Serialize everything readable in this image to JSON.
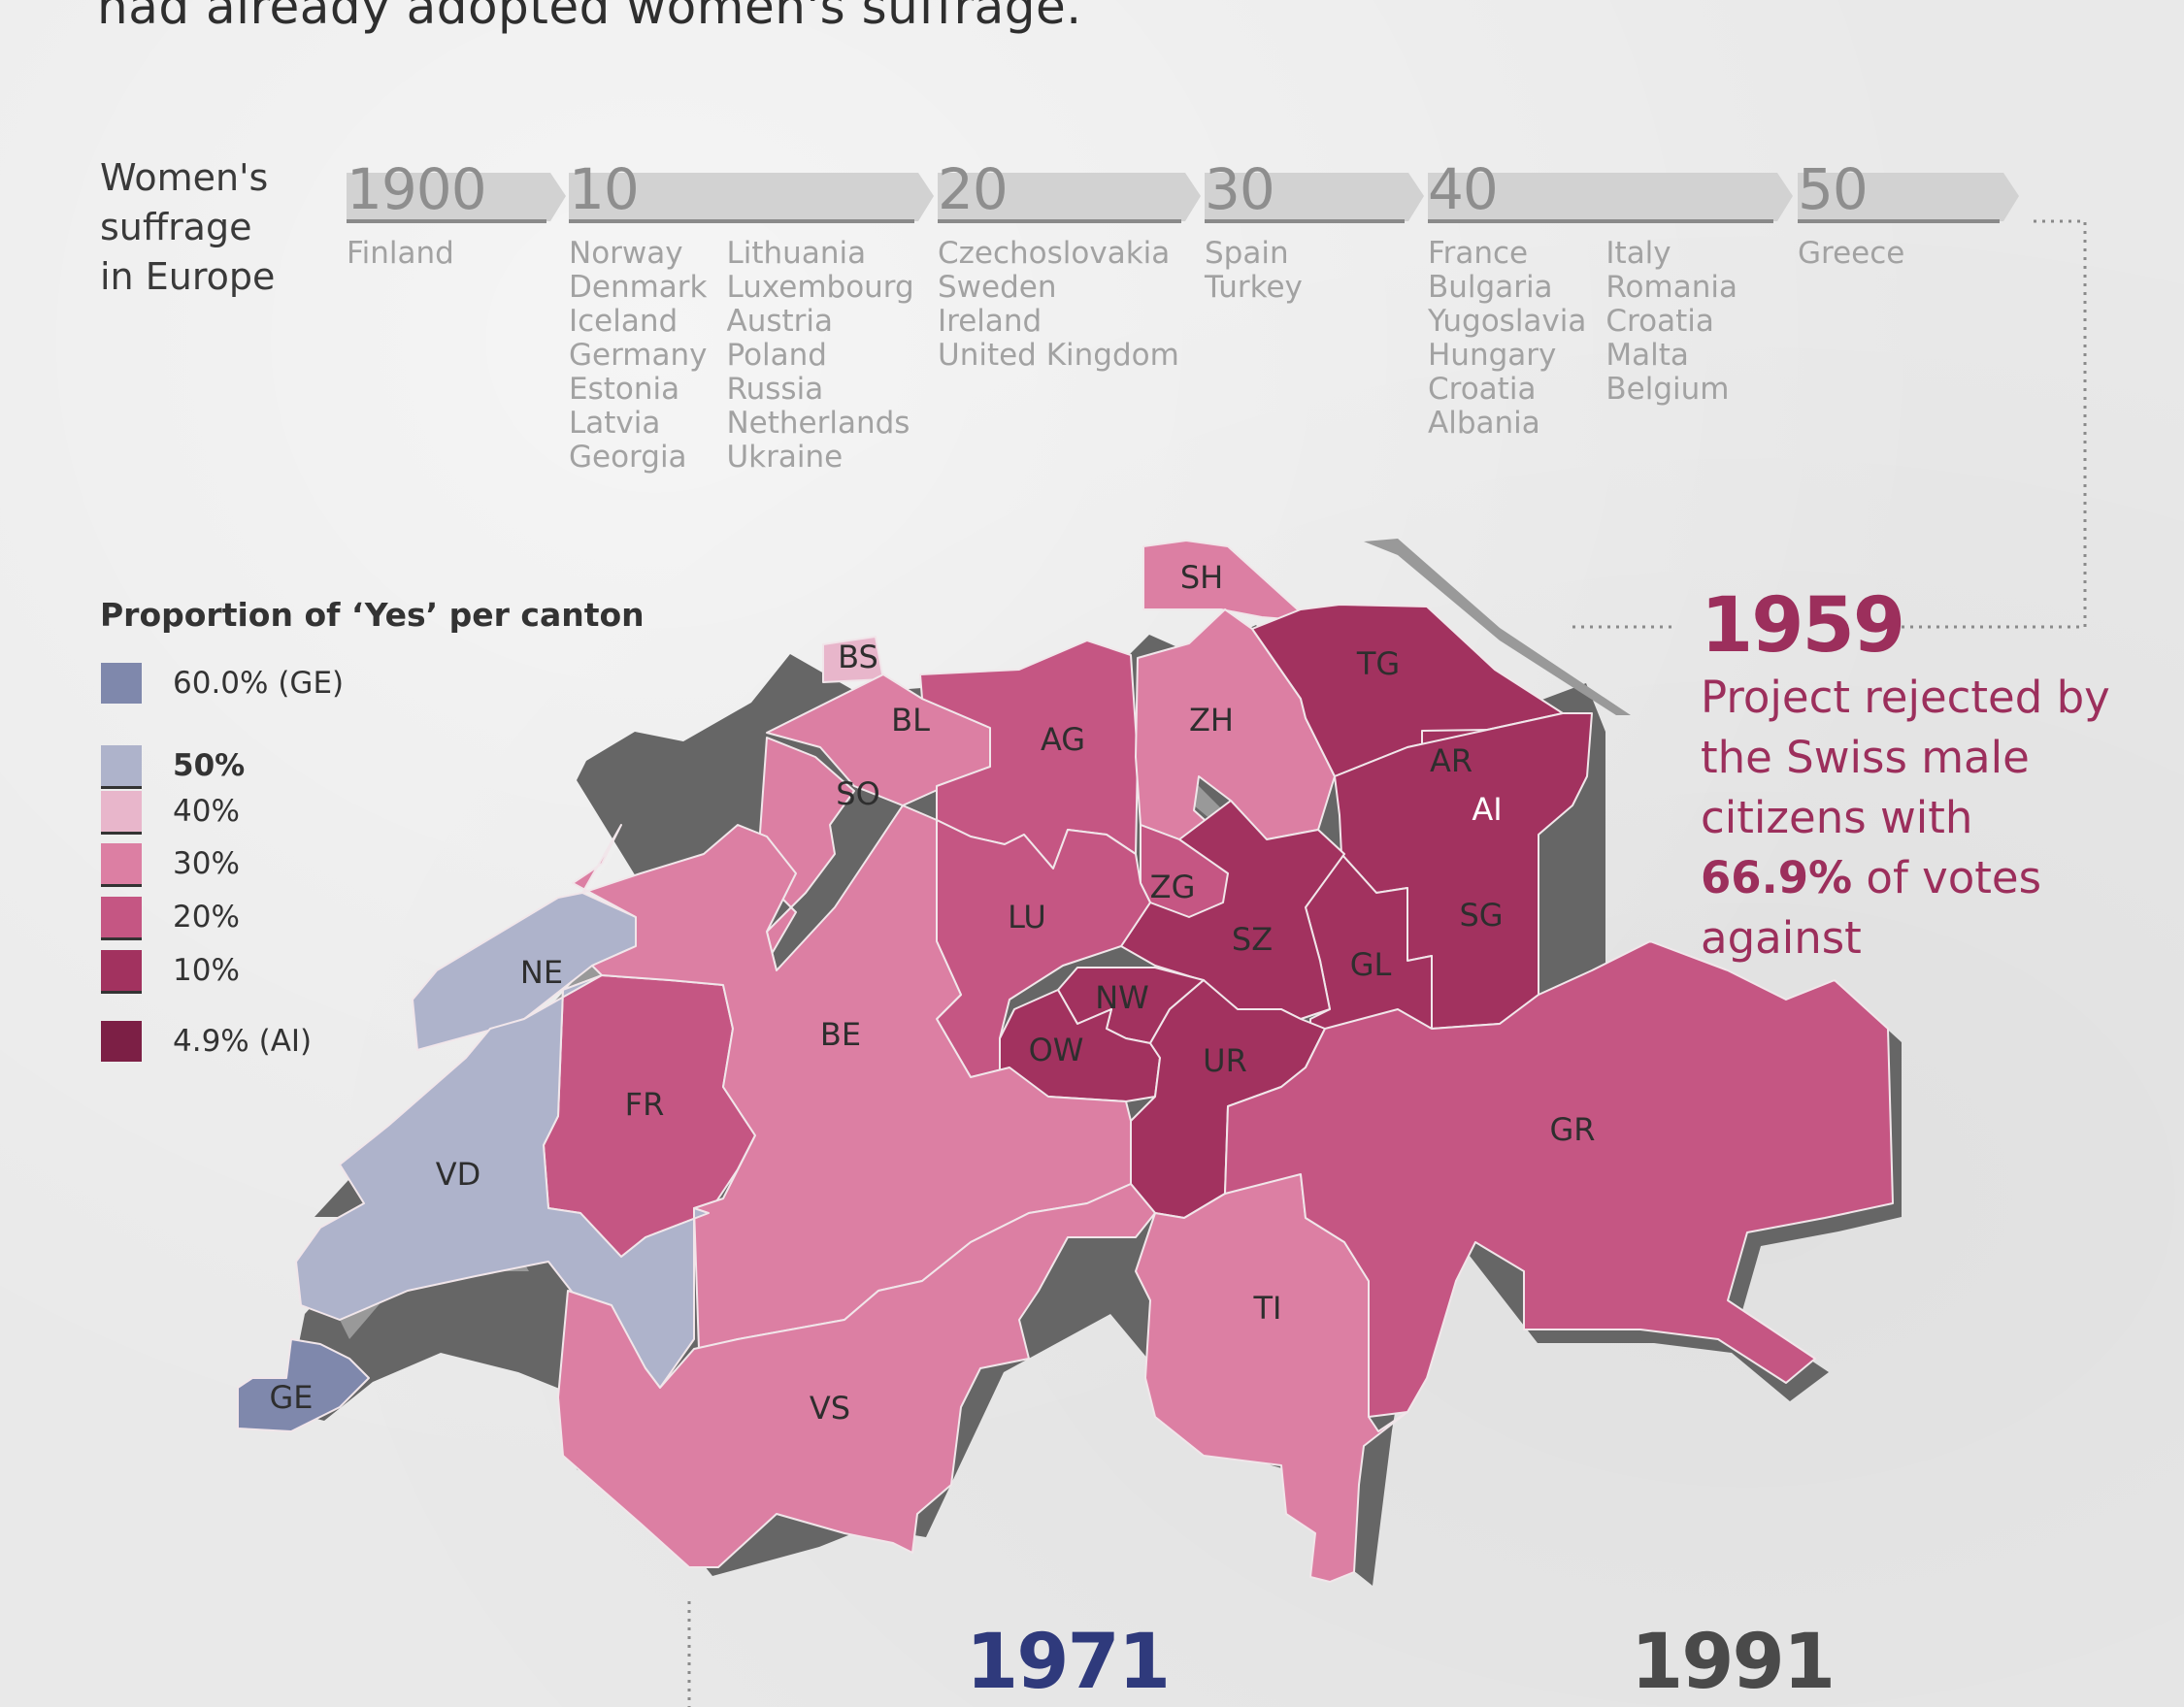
{
  "headline": "had already adopted women's suffrage.",
  "timeline": {
    "title_lines": [
      "Women's",
      "suffrage",
      "in Europe"
    ],
    "periods": [
      {
        "year": "1900",
        "columns": [
          [
            "Finland"
          ]
        ]
      },
      {
        "year": "10",
        "columns": [
          [
            "Norway",
            "Denmark",
            "Iceland",
            "Germany",
            "Estonia",
            "Latvia",
            "Georgia"
          ],
          [
            "Lithuania",
            "Luxembourg",
            "Austria",
            "Poland",
            "Russia",
            "Netherlands",
            "Ukraine"
          ]
        ]
      },
      {
        "year": "20",
        "columns": [
          [
            "Czechoslovakia",
            "Sweden",
            "Ireland",
            "United Kingdom"
          ]
        ]
      },
      {
        "year": "30",
        "columns": [
          [
            "Spain",
            "Turkey"
          ]
        ]
      },
      {
        "year": "40",
        "columns": [
          [
            "France",
            "Bulgaria",
            "Yugoslavia",
            "Hungary",
            "Croatia",
            "Albania"
          ],
          [
            "Italy",
            "Romania",
            "Croatia",
            "Malta",
            "Belgium"
          ]
        ]
      },
      {
        "year": "50",
        "columns": [
          [
            "Greece"
          ]
        ]
      }
    ]
  },
  "legend": {
    "title": "Proportion of ‘Yes’ per canton",
    "items": [
      {
        "label": "60.0% (GE)",
        "color": "#7f88ac",
        "tick": false,
        "bold": false
      },
      {
        "label": "50%",
        "color": "#aeb3cb",
        "tick": true,
        "bold": true
      },
      {
        "label": "40%",
        "color": "#e8b6cb",
        "tick": true,
        "bold": false
      },
      {
        "label": "30%",
        "color": "#dc7fa3",
        "tick": true,
        "bold": false
      },
      {
        "label": "20%",
        "color": "#c55683",
        "tick": true,
        "bold": false
      },
      {
        "label": "10%",
        "color": "#a2325f",
        "tick": true,
        "bold": false
      },
      {
        "label": "4.9% (AI)",
        "color": "#7c1f45",
        "tick": false,
        "bold": false
      }
    ]
  },
  "map": {
    "cantons": [
      {
        "code": "SH",
        "color": "#dc7fa3"
      },
      {
        "code": "BS",
        "color": "#e8b6cb"
      },
      {
        "code": "BL",
        "color": "#dc7fa3"
      },
      {
        "code": "SO",
        "color": "#dc7fa3"
      },
      {
        "code": "AG",
        "color": "#c55683"
      },
      {
        "code": "ZH",
        "color": "#dc7fa3"
      },
      {
        "code": "TG",
        "color": "#a2325f"
      },
      {
        "code": "AR",
        "color": "#a2325f"
      },
      {
        "code": "AI",
        "color": "#7c1f45"
      },
      {
        "code": "SG",
        "color": "#a2325f"
      },
      {
        "code": "GL",
        "color": "#a2325f"
      },
      {
        "code": "SZ",
        "color": "#a2325f"
      },
      {
        "code": "ZG",
        "color": "#c55683"
      },
      {
        "code": "LU",
        "color": "#c55683"
      },
      {
        "code": "NW",
        "color": "#a2325f"
      },
      {
        "code": "OW",
        "color": "#a2325f"
      },
      {
        "code": "UR",
        "color": "#a2325f"
      },
      {
        "code": "NE",
        "color": "#aeb3cb"
      },
      {
        "code": "FR",
        "color": "#c55683"
      },
      {
        "code": "BE",
        "color": "#dc7fa3"
      },
      {
        "code": "VD",
        "color": "#aeb3cb"
      },
      {
        "code": "GE",
        "color": "#7f88ac"
      },
      {
        "code": "VS",
        "color": "#dc7fa3"
      },
      {
        "code": "TI",
        "color": "#dc7fa3"
      },
      {
        "code": "GR",
        "color": "#c55683"
      }
    ]
  },
  "annotation": {
    "year": "1959",
    "text_before": "Project rejected by the Swiss male citizens with ",
    "percent": "66.9%",
    "text_after": " of votes against"
  },
  "bottom_years": [
    {
      "year": "1971",
      "color": "#2f3a7c"
    },
    {
      "year": "1991",
      "color": "#4a4a4a"
    }
  ],
  "colors": {
    "accent": "#9c2f5c",
    "shadow": "#666666"
  }
}
